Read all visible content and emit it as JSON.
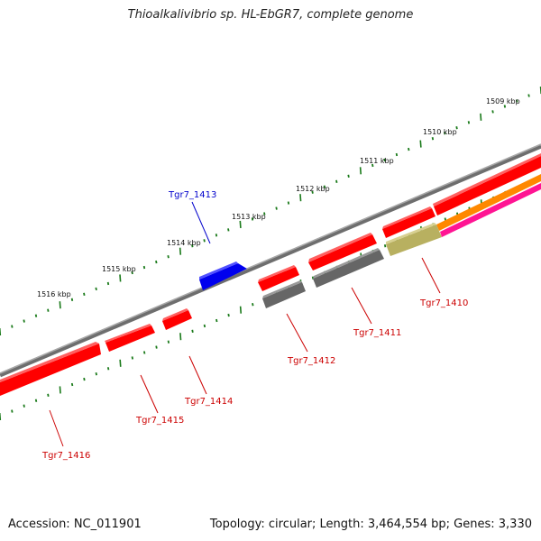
{
  "title": "Thioalkalivibrio sp. HL-EbGR7, complete genome",
  "footer": {
    "accession": "Accession: NC_011901",
    "info": "Topology: circular; Length: 3,464,554 bp; Genes: 3,330"
  },
  "scale_labels": [
    "1509 kbp",
    "1510 kbp",
    "1511 kbp",
    "1512 kbp",
    "1513 kbp",
    "1514 kbp",
    "1515 kbp",
    "1516 kbp"
  ],
  "gene_labels": [
    "Tgr7_1413",
    "Tgr7_1410",
    "Tgr7_1411",
    "Tgr7_1412",
    "Tgr7_1414",
    "Tgr7_1415",
    "Tgr7_1416"
  ],
  "colors": {
    "backbone": "#777777",
    "gene_red": "#ff0000",
    "gene_blue": "#0000ee",
    "gene_gray": "#666666",
    "gene_olive": "#b8b060",
    "gene_orange": "#ff8800",
    "gene_pink": "#ff1493",
    "tick_green": "#1a7a1a",
    "label_red": "#cc0000",
    "label_blue": "#0000cc"
  }
}
